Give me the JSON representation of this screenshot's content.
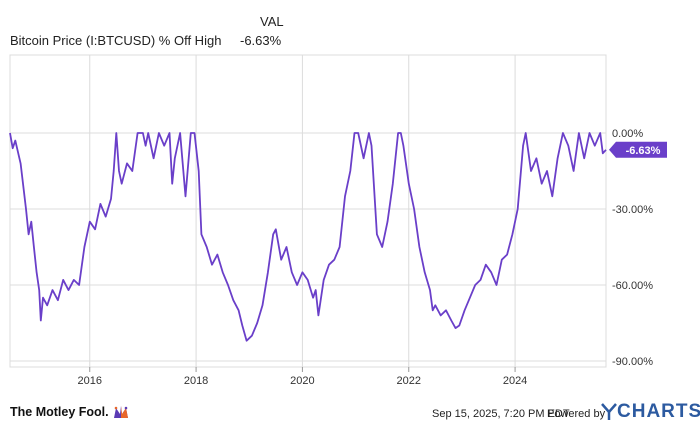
{
  "legend": {
    "column_header": "VAL",
    "series_label": "Bitcoin Price (I:BTCUSD) % Off High",
    "series_value": "-6.63%"
  },
  "footer": {
    "brand": "The Motley Fool.",
    "timestamp": "Sep 15, 2025, 7:20 PM EDT",
    "powered_by": "Powered by",
    "provider": "YCHARTS"
  },
  "colors": {
    "series": "#6a3fc9",
    "grid": "#dcdcdc",
    "axis_text": "#333333",
    "brand_orange": "#e8672a",
    "brand_purple": "#5b3bb5"
  },
  "chart_data": {
    "type": "line",
    "title": "",
    "xlabel": "",
    "ylabel": "",
    "grid": true,
    "x_range": [
      2014.5,
      2025.71
    ],
    "ylim": [
      -90,
      0
    ],
    "y_ticks": [
      "0.00%",
      "-30.00%",
      "-60.00%",
      "-90.00%"
    ],
    "y_tick_values": [
      0,
      -30,
      -60,
      -90
    ],
    "x_ticks": [
      "2016",
      "2018",
      "2020",
      "2022",
      "2024"
    ],
    "x_tick_values": [
      2016,
      2018,
      2020,
      2022,
      2024
    ],
    "last_value_label": "-6.63%",
    "series": [
      {
        "name": "Bitcoin Price (I:BTCUSD) % Off High",
        "x": [
          2014.5,
          2014.55,
          2014.6,
          2014.7,
          2014.8,
          2014.85,
          2014.9,
          2014.95,
          2015.0,
          2015.05,
          2015.08,
          2015.12,
          2015.2,
          2015.3,
          2015.4,
          2015.5,
          2015.6,
          2015.7,
          2015.8,
          2015.9,
          2016.0,
          2016.1,
          2016.2,
          2016.3,
          2016.4,
          2016.45,
          2016.5,
          2016.55,
          2016.6,
          2016.7,
          2016.8,
          2016.9,
          2017.0,
          2017.05,
          2017.1,
          2017.2,
          2017.3,
          2017.4,
          2017.5,
          2017.55,
          2017.6,
          2017.7,
          2017.8,
          2017.9,
          2017.97,
          2018.05,
          2018.1,
          2018.2,
          2018.3,
          2018.4,
          2018.5,
          2018.6,
          2018.7,
          2018.8,
          2018.87,
          2018.95,
          2019.05,
          2019.15,
          2019.25,
          2019.35,
          2019.45,
          2019.5,
          2019.6,
          2019.7,
          2019.8,
          2019.9,
          2020.0,
          2020.1,
          2020.2,
          2020.25,
          2020.3,
          2020.4,
          2020.5,
          2020.6,
          2020.7,
          2020.8,
          2020.9,
          2020.98,
          2021.05,
          2021.15,
          2021.25,
          2021.3,
          2021.4,
          2021.5,
          2021.6,
          2021.7,
          2021.8,
          2021.85,
          2021.9,
          2022.0,
          2022.1,
          2022.2,
          2022.3,
          2022.4,
          2022.45,
          2022.5,
          2022.6,
          2022.7,
          2022.8,
          2022.88,
          2022.95,
          2023.05,
          2023.15,
          2023.25,
          2023.35,
          2023.45,
          2023.55,
          2023.65,
          2023.75,
          2023.85,
          2023.95,
          2024.05,
          2024.15,
          2024.2,
          2024.3,
          2024.4,
          2024.5,
          2024.6,
          2024.7,
          2024.8,
          2024.9,
          2025.0,
          2025.1,
          2025.2,
          2025.3,
          2025.4,
          2025.5,
          2025.6,
          2025.65,
          2025.71
        ],
        "values": [
          0,
          -6,
          -3,
          -12,
          -30,
          -40,
          -35,
          -45,
          -55,
          -62,
          -74,
          -65,
          -68,
          -62,
          -66,
          -58,
          -62,
          -58,
          -60,
          -45,
          -35,
          -38,
          -28,
          -33,
          -26,
          -15,
          0,
          -15,
          -20,
          -12,
          -15,
          0,
          0,
          -5,
          0,
          -10,
          0,
          -5,
          0,
          -20,
          -10,
          0,
          -25,
          0,
          0,
          -15,
          -40,
          -45,
          -52,
          -48,
          -55,
          -60,
          -66,
          -70,
          -76,
          -82,
          -80,
          -75,
          -68,
          -55,
          -40,
          -38,
          -50,
          -45,
          -55,
          -60,
          -55,
          -58,
          -65,
          -62,
          -72,
          -58,
          -52,
          -50,
          -45,
          -25,
          -15,
          0,
          0,
          -10,
          0,
          -5,
          -40,
          -45,
          -35,
          -20,
          0,
          0,
          -5,
          -20,
          -30,
          -45,
          -55,
          -62,
          -70,
          -68,
          -72,
          -70,
          -74,
          -77,
          -76,
          -70,
          -65,
          -60,
          -58,
          -52,
          -55,
          -60,
          -50,
          -48,
          -40,
          -30,
          -5,
          0,
          -15,
          -10,
          -20,
          -15,
          -25,
          -10,
          0,
          -5,
          -15,
          0,
          -10,
          0,
          -5,
          0,
          -8,
          -6.63
        ]
      }
    ]
  }
}
